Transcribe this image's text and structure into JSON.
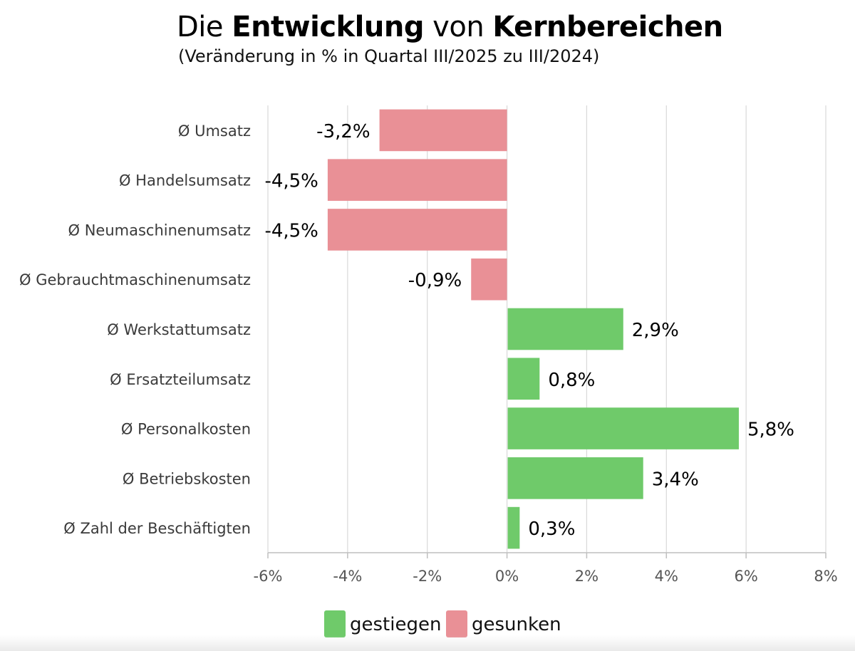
{
  "chart_data": {
    "type": "bar",
    "orientation": "horizontal",
    "title_parts": [
      {
        "text": "Die ",
        "bold": false
      },
      {
        "text": "Entwicklung",
        "bold": true
      },
      {
        "text": " von ",
        "bold": false
      },
      {
        "text": "Kernbereichen",
        "bold": true
      }
    ],
    "subtitle": "(Veränderung in % in Quartal III/2025 zu III/2024)",
    "categories": [
      "Ø Umsatz",
      "Ø Handelsumsatz",
      "Ø Neumaschinenumsatz",
      "Ø Gebrauchtmaschinenumsatz",
      "Ø Werkstattumsatz",
      "Ø Ersatzteilumsatz",
      "Ø Personalkosten",
      "Ø Betriebskosten",
      "Ø Zahl der Beschäftigten"
    ],
    "values": [
      -3.2,
      -4.5,
      -4.5,
      -0.9,
      2.9,
      0.8,
      5.8,
      3.4,
      0.3
    ],
    "data_labels": [
      "-3,2%",
      "-4,5%",
      "-4,5%",
      "-0,9%",
      "2,9%",
      "0,8%",
      "5,8%",
      "3,4%",
      "0,3%"
    ],
    "xlim": [
      -6,
      8
    ],
    "xticks": [
      -6,
      -4,
      -2,
      0,
      2,
      4,
      6,
      8
    ],
    "xtick_labels": [
      "-6%",
      "-4%",
      "-2%",
      "0%",
      "2%",
      "4%",
      "6%",
      "8%"
    ],
    "grid": true,
    "colors": {
      "positive": "#6fca6a",
      "negative": "#e99096",
      "grid": "#d9d9d9",
      "axis": "#bfbfbf"
    },
    "legend": {
      "position": "bottom",
      "items": [
        {
          "label": "gestiegen",
          "color": "#6fca6a"
        },
        {
          "label": "gesunken",
          "color": "#e99096"
        }
      ]
    }
  }
}
